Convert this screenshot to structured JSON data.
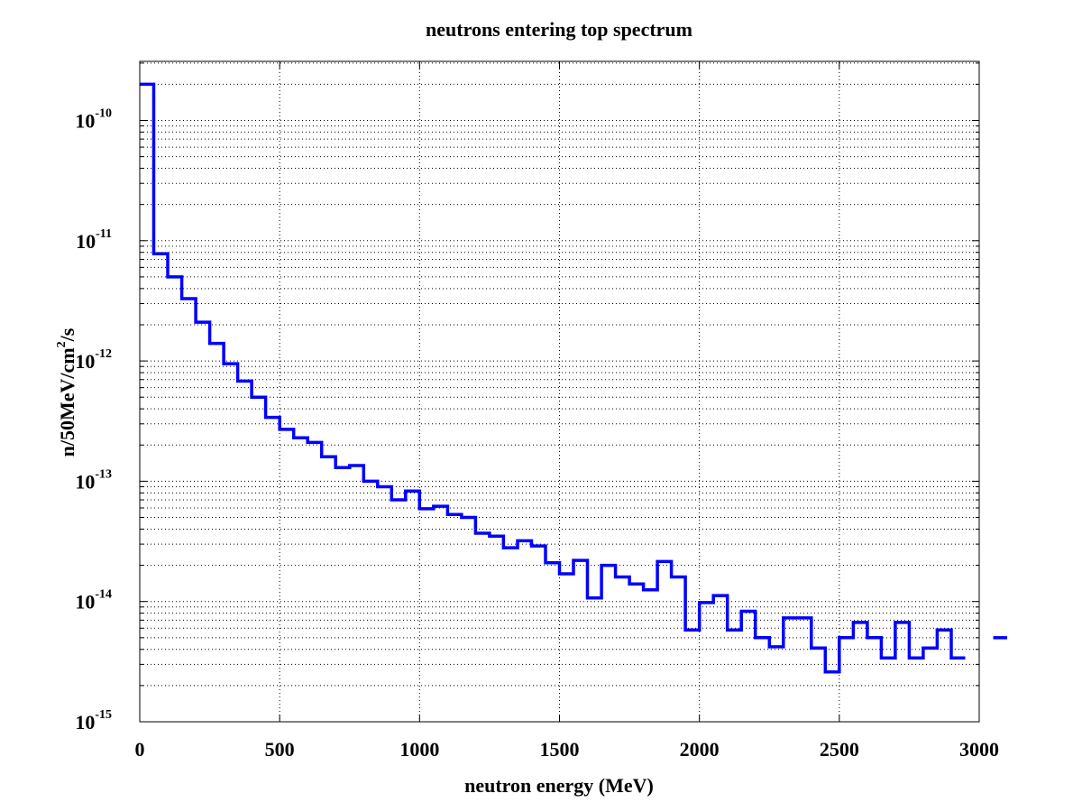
{
  "chart_data": {
    "type": "line",
    "title": "neutrons entering top spectrum",
    "xlabel": "neutron energy (MeV)",
    "ylabel": {
      "main": "n/50MeV/cm",
      "exponent": "2",
      "suffix": "/s"
    },
    "xlim": [
      0,
      3000
    ],
    "ylim": [
      1e-15,
      3e-10
    ],
    "yscale": "log",
    "grid": true,
    "x_ticks": [
      "0",
      "500",
      "1000",
      "1500",
      "2000",
      "2500",
      "3000"
    ],
    "y_ticks": [
      {
        "base": "10",
        "exponent": "-15"
      },
      {
        "base": "10",
        "exponent": "-14"
      },
      {
        "base": "10",
        "exponent": "-13"
      },
      {
        "base": "10",
        "exponent": "-12"
      },
      {
        "base": "10",
        "exponent": "-11"
      },
      {
        "base": "10",
        "exponent": "-10"
      }
    ],
    "series": [
      {
        "color": "#0000ff",
        "style": "histogram-step",
        "bin_width": 50,
        "bin_start": 0,
        "values": [
          2e-10,
          7.8e-12,
          5e-12,
          3.3e-12,
          2.1e-12,
          1.4e-12,
          9.5e-13,
          6.8e-13,
          5e-13,
          3.4e-13,
          2.7e-13,
          2.3e-13,
          2.1e-13,
          1.6e-13,
          1.3e-13,
          1.35e-13,
          1e-13,
          9e-14,
          7e-14,
          8.3e-14,
          5.9e-14,
          6.2e-14,
          5.3e-14,
          5e-14,
          3.7e-14,
          3.5e-14,
          2.8e-14,
          3.2e-14,
          2.9e-14,
          2.1e-14,
          1.7e-14,
          2.2e-14,
          1.07e-14,
          2e-14,
          1.6e-14,
          1.4e-14,
          1.25e-14,
          2.15e-14,
          1.6e-14,
          5.8e-15,
          9.8e-15,
          1.12e-14,
          5.8e-15,
          8.3e-15,
          5e-15,
          4.2e-15,
          7.3e-15,
          7.3e-15,
          4.1e-15,
          2.6e-15,
          5e-15,
          6.7e-15,
          5e-15,
          3.4e-15,
          6.7e-15,
          3.4e-15,
          4.1e-15,
          5.8e-15,
          3.4e-15
        ],
        "trailing_segment": {
          "x": [
            3050,
            3100
          ],
          "value": 5e-15
        }
      }
    ]
  }
}
